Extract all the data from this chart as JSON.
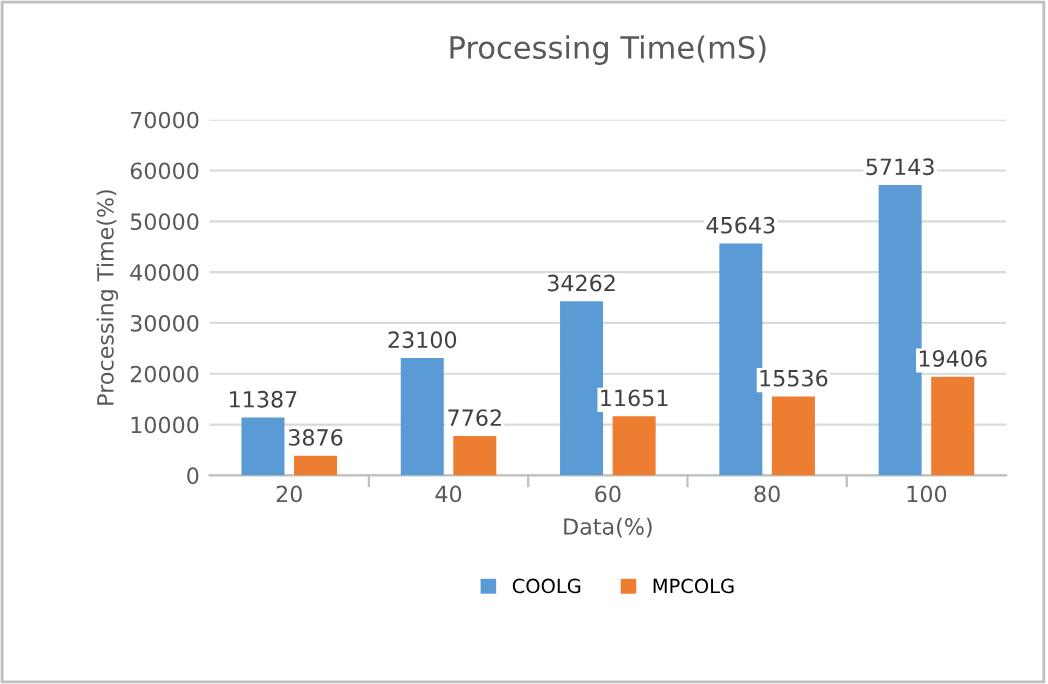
{
  "chart_data": {
    "type": "bar",
    "title": "Processing Time(mS)",
    "xlabel": "Data(%)",
    "ylabel": "Processing Time(%)",
    "categories": [
      "20",
      "40",
      "60",
      "80",
      "100"
    ],
    "series": [
      {
        "name": "COOLG",
        "color": "#5b9bd5",
        "values": [
          11387,
          23100,
          34262,
          45643,
          57143
        ]
      },
      {
        "name": "MPCOLG",
        "color": "#ed7d31",
        "values": [
          3876,
          7762,
          11651,
          15536,
          19406
        ]
      }
    ],
    "ylim": [
      0,
      70000
    ],
    "yticks": [
      0,
      10000,
      20000,
      30000,
      40000,
      50000,
      60000,
      70000
    ],
    "grid": "y",
    "legend": "bottom",
    "data_labels": true
  }
}
